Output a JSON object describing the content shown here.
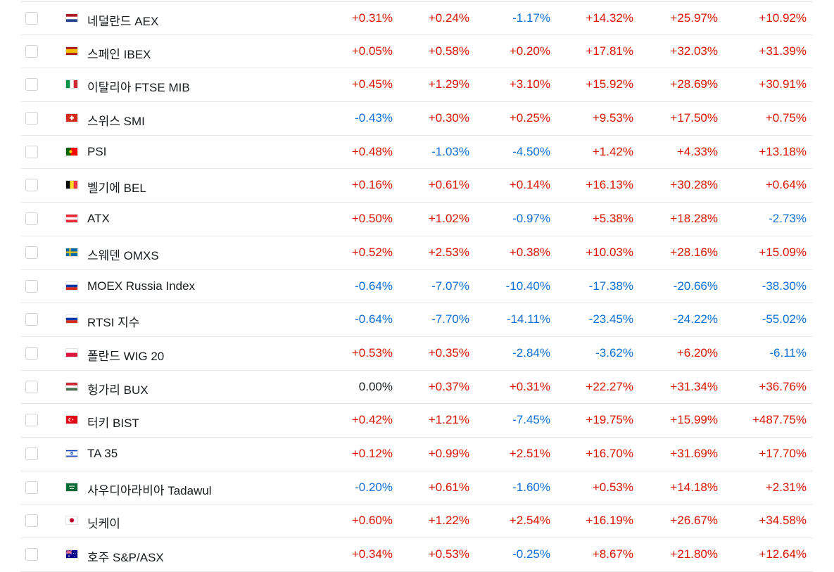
{
  "colors": {
    "positive": "#d91400",
    "negative": "#0e6ed6",
    "neutral": "#181c21"
  },
  "rows": [
    {
      "flag": "netherlands-flag-icon",
      "name": "네덜란드 AEX",
      "values": [
        "+0.31%",
        "+0.24%",
        "-1.17%",
        "+14.32%",
        "+25.97%",
        "+10.92%"
      ]
    },
    {
      "flag": "spain-flag-icon",
      "name": "스페인 IBEX",
      "values": [
        "+0.05%",
        "+0.58%",
        "+0.20%",
        "+17.81%",
        "+32.03%",
        "+31.39%"
      ]
    },
    {
      "flag": "italy-flag-icon",
      "name": "이탈리아 FTSE MIB",
      "values": [
        "+0.45%",
        "+1.29%",
        "+3.10%",
        "+15.92%",
        "+28.69%",
        "+30.91%"
      ]
    },
    {
      "flag": "switzerland-flag-icon",
      "name": "스위스 SMI",
      "values": [
        "-0.43%",
        "+0.30%",
        "+0.25%",
        "+9.53%",
        "+17.50%",
        "+0.75%"
      ]
    },
    {
      "flag": "portugal-flag-icon",
      "name": "PSI",
      "values": [
        "+0.48%",
        "-1.03%",
        "-4.50%",
        "+1.42%",
        "+4.33%",
        "+13.18%"
      ]
    },
    {
      "flag": "belgium-flag-icon",
      "name": "벨기에 BEL",
      "values": [
        "+0.16%",
        "+0.61%",
        "+0.14%",
        "+16.13%",
        "+30.28%",
        "+0.64%"
      ]
    },
    {
      "flag": "austria-flag-icon",
      "name": "ATX",
      "values": [
        "+0.50%",
        "+1.02%",
        "-0.97%",
        "+5.38%",
        "+18.28%",
        "-2.73%"
      ]
    },
    {
      "flag": "sweden-flag-icon",
      "name": "스웨덴 OMXS",
      "values": [
        "+0.52%",
        "+2.53%",
        "+0.38%",
        "+10.03%",
        "+28.16%",
        "+15.09%"
      ]
    },
    {
      "flag": "russia-flag-icon",
      "name": "MOEX Russia Index",
      "values": [
        "-0.64%",
        "-7.07%",
        "-10.40%",
        "-17.38%",
        "-20.66%",
        "-38.30%"
      ]
    },
    {
      "flag": "russia-flag-icon",
      "name": "RTSI 지수",
      "values": [
        "-0.64%",
        "-7.70%",
        "-14.11%",
        "-23.45%",
        "-24.22%",
        "-55.02%"
      ]
    },
    {
      "flag": "poland-flag-icon",
      "name": "폴란드 WIG 20",
      "values": [
        "+0.53%",
        "+0.35%",
        "-2.84%",
        "-3.62%",
        "+6.20%",
        "-6.11%"
      ]
    },
    {
      "flag": "hungary-flag-icon",
      "name": "헝가리 BUX",
      "values": [
        "0.00%",
        "+0.37%",
        "+0.31%",
        "+22.27%",
        "+31.34%",
        "+36.76%"
      ]
    },
    {
      "flag": "turkey-flag-icon",
      "name": "터키 BIST",
      "values": [
        "+0.42%",
        "+1.21%",
        "-7.45%",
        "+19.75%",
        "+15.99%",
        "+487.75%"
      ]
    },
    {
      "flag": "israel-flag-icon",
      "name": "TA 35",
      "values": [
        "+0.12%",
        "+0.99%",
        "+2.51%",
        "+16.70%",
        "+31.69%",
        "+17.70%"
      ]
    },
    {
      "flag": "saudi-arabia-flag-icon",
      "name": "사우디아라비아 Tadawul",
      "values": [
        "-0.20%",
        "+0.61%",
        "-1.60%",
        "+0.53%",
        "+14.18%",
        "+2.31%"
      ]
    },
    {
      "flag": "japan-flag-icon",
      "name": "닛케이",
      "values": [
        "+0.60%",
        "+1.22%",
        "+2.54%",
        "+16.19%",
        "+26.67%",
        "+34.58%"
      ]
    },
    {
      "flag": "australia-flag-icon",
      "name": "호주 S&P/ASX",
      "values": [
        "+0.34%",
        "+0.53%",
        "-0.25%",
        "+8.67%",
        "+21.80%",
        "+12.64%"
      ]
    }
  ]
}
